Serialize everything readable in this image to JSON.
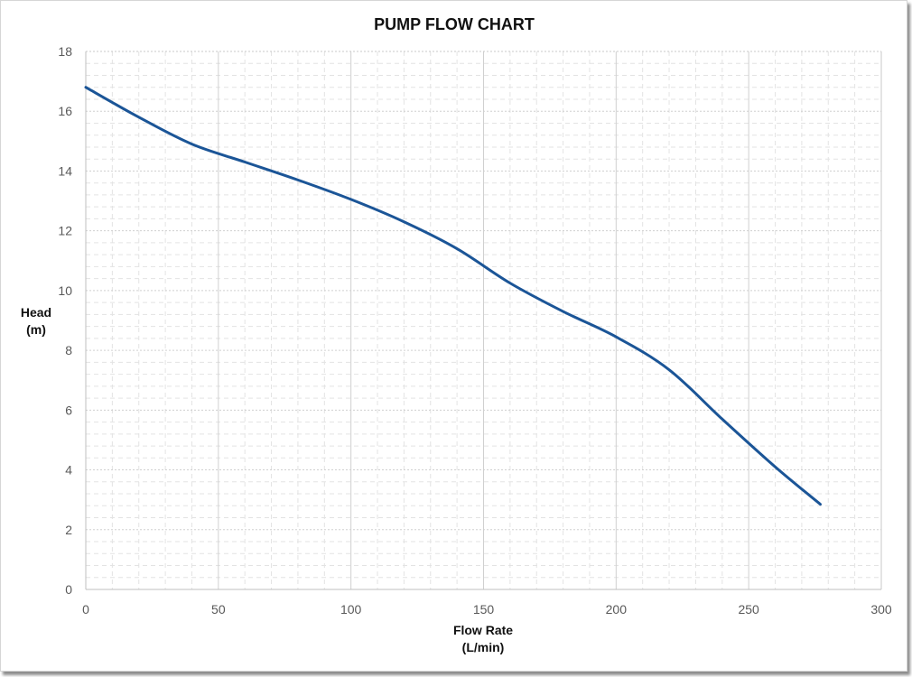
{
  "chart_data": {
    "type": "line",
    "title": "PUMP FLOW CHART",
    "xlabel": [
      "Flow Rate",
      "(L/min)"
    ],
    "ylabel": [
      "Head",
      "(m)"
    ],
    "xlim": [
      0,
      300
    ],
    "ylim": [
      0,
      18
    ],
    "x_ticks": [
      0,
      50,
      100,
      150,
      200,
      250,
      300
    ],
    "y_ticks": [
      0,
      2,
      4,
      6,
      8,
      10,
      12,
      14,
      16,
      18
    ],
    "grid": true,
    "legend": "none",
    "series": [
      {
        "color": "#1b5597",
        "x": [
          0,
          20,
          40,
          60,
          80,
          100,
          120,
          140,
          160,
          180,
          200,
          220,
          240,
          260,
          277
        ],
        "y": [
          16.8,
          15.8,
          14.9,
          14.3,
          13.7,
          13.05,
          12.3,
          11.4,
          10.25,
          9.3,
          8.45,
          7.35,
          5.7,
          4.1,
          2.85
        ]
      }
    ]
  }
}
